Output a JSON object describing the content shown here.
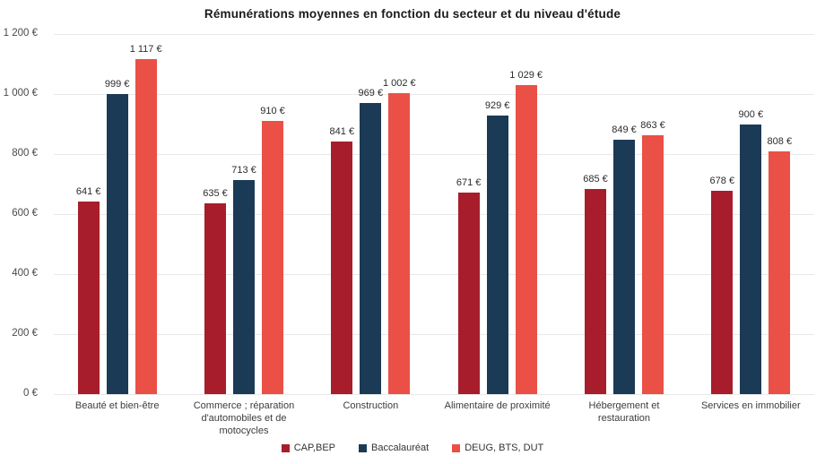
{
  "chart_data": {
    "type": "bar",
    "title": "Rémunérations moyennes en fonction du secteur et du niveau d'étude",
    "categories": [
      "Beauté et bien-être",
      "Commerce ; réparation d'automobiles et de motocycles",
      "Construction",
      "Alimentaire de proximité",
      "Hébergement et restauration",
      "Services en immobilier"
    ],
    "series": [
      {
        "name": "CAP,BEP",
        "color": "#A81D2B",
        "values": [
          641,
          635,
          841,
          671,
          685,
          678
        ]
      },
      {
        "name": "Baccalauréat",
        "color": "#1B3A55",
        "values": [
          999,
          713,
          969,
          929,
          849,
          900
        ]
      },
      {
        "name": "DEUG, BTS, DUT",
        "color": "#EA5045",
        "values": [
          1117,
          910,
          1002,
          1029,
          863,
          808
        ]
      }
    ],
    "value_labels": [
      [
        "641 €",
        "635 €",
        "841 €",
        "671 €",
        "685 €",
        "678 €"
      ],
      [
        "999 €",
        "713 €",
        "969 €",
        "929 €",
        "849 €",
        "900 €"
      ],
      [
        "1 117 €",
        "910 €",
        "1 002 €",
        "1 029 €",
        "863 €",
        "808 €"
      ]
    ],
    "ylim": [
      0,
      1200
    ],
    "yticks": [
      0,
      200,
      400,
      600,
      800,
      1000,
      1200
    ],
    "ytick_labels": [
      "0 €",
      "200 €",
      "400 €",
      "600 €",
      "800 €",
      "1 000 €",
      "1 200 €"
    ],
    "grid": "horizontal",
    "legend_position": "bottom",
    "background_color": "#ffffff",
    "gridline_color": "#e9e9e9"
  }
}
